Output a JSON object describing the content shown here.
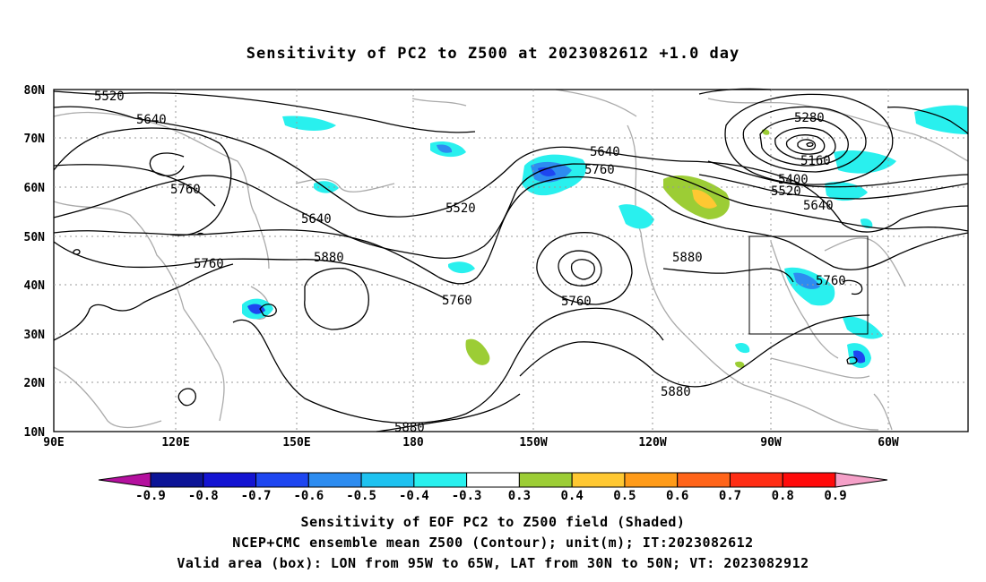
{
  "title": "Sensitivity of PC2 to Z500 at 2023082612 +1.0 day",
  "lat_labels": [
    "80N",
    "70N",
    "60N",
    "50N",
    "40N",
    "30N",
    "20N",
    "10N"
  ],
  "lon_labels": [
    "90E",
    "120E",
    "150E",
    "180",
    "150W",
    "120W",
    "90W",
    "60W"
  ],
  "contour_labels": [
    "5520",
    "5640",
    "5760",
    "5640",
    "5760",
    "5880",
    "5520",
    "5640",
    "5760",
    "5760",
    "5760",
    "5880",
    "5880",
    "5880",
    "5280",
    "5160",
    "5400",
    "5520",
    "5640",
    "5760"
  ],
  "colorbar": {
    "labels": [
      "-0.9",
      "-0.8",
      "-0.7",
      "-0.6",
      "-0.5",
      "-0.4",
      "-0.3",
      "0.3",
      "0.4",
      "0.5",
      "0.6",
      "0.7",
      "0.8",
      "0.9"
    ],
    "colors": [
      "#b4109e",
      "#0c1496",
      "#1414d2",
      "#1e46f0",
      "#2d8cf0",
      "#1ec2f0",
      "#29f0ee",
      "#ffffff",
      "#9ccd35",
      "#ffc832",
      "#ff9b19",
      "#ff6419",
      "#ff2d14",
      "#ff0a0a",
      "#f5a0c8"
    ]
  },
  "valid_box": {
    "lon_from": "95W",
    "lon_to": "65W",
    "lat_from": "30N",
    "lat_to": "50N"
  },
  "footer": {
    "line1": "Sensitivity of EOF PC2 to Z500 field (Shaded)",
    "line2": "NCEP+CMC ensemble mean Z500 (Contour); unit(m); IT:2023082612",
    "line3": "Valid area (box): LON from 95W to 65W, LAT from 30N to 50N; VT: 2023082912"
  }
}
